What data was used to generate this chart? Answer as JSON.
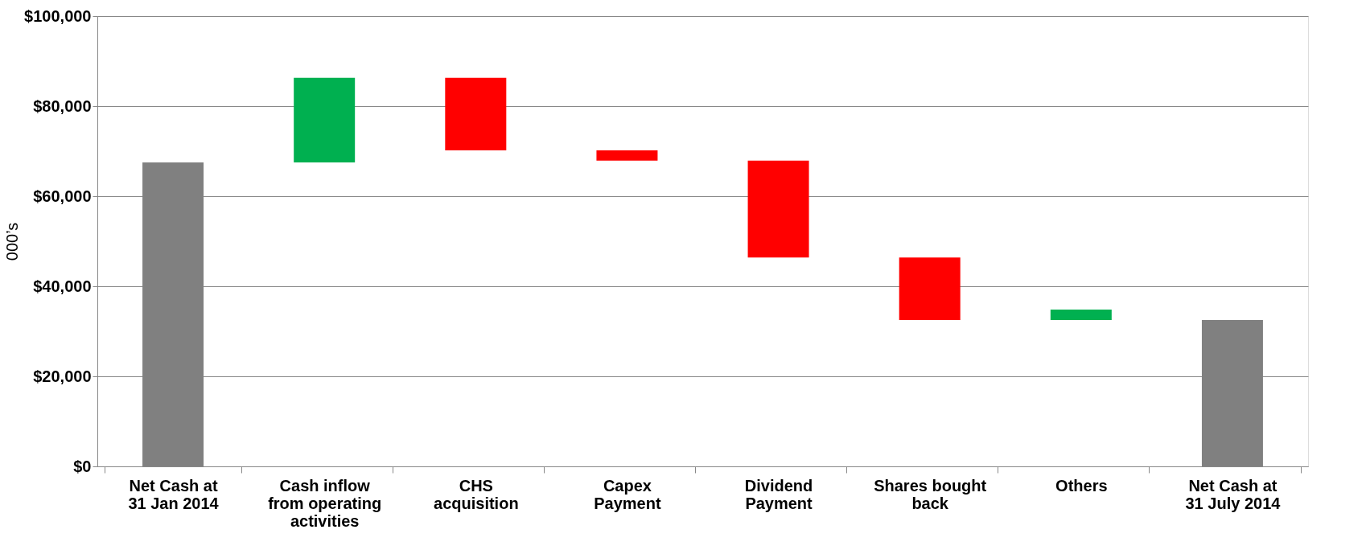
{
  "chart_data": {
    "type": "bar",
    "categories": [
      "Net Cash  at\n31 Jan 2014",
      "Cash inflow\nfrom operating\nactivities",
      "CHS\nacquisition",
      "Capex\nPayment",
      "Dividend\nPayment",
      "Shares bought\nback",
      "Others",
      "Net Cash  at\n31 July 2014"
    ],
    "values": [
      67500,
      18800,
      -16100,
      -2300,
      -21500,
      -13900,
      2300,
      32500
    ],
    "base": [
      0,
      67500,
      86300,
      70200,
      67900,
      46400,
      32500,
      0
    ],
    "colors": [
      "#808080",
      "#00b050",
      "#ff0000",
      "#ff0000",
      "#ff0000",
      "#ff0000",
      "#00b050",
      "#808080"
    ],
    "ylabel": "000’s",
    "ylim": [
      0,
      100000
    ],
    "yticks": [
      {
        "value": 0,
        "label": "$0"
      },
      {
        "value": 20000,
        "label": "$20,000"
      },
      {
        "value": 40000,
        "label": "$40,000"
      },
      {
        "value": 60000,
        "label": "$60,000"
      },
      {
        "value": 80000,
        "label": "$80,000"
      },
      {
        "value": 100000,
        "label": "$100,000"
      }
    ],
    "grid": "y"
  }
}
